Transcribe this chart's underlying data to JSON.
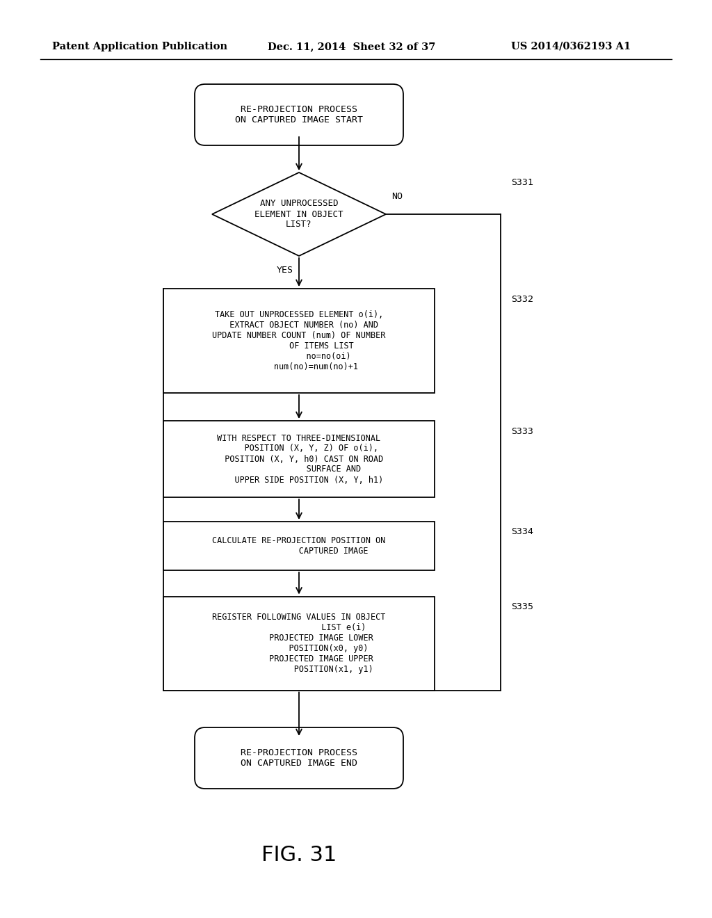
{
  "bg_color": "#ffffff",
  "header_left": "Patent Application Publication",
  "header_mid": "Dec. 11, 2014  Sheet 32 of 37",
  "header_right": "US 2014/0362193 A1",
  "figure_label": "FIG. 31",
  "start_text": "RE-PROJECTION PROCESS\nON CAPTURED IMAGE START",
  "s331_text": "ANY UNPROCESSED\nELEMENT IN OBJECT\nLIST?",
  "s332_text": "TAKE OUT UNPROCESSED ELEMENT o(i),\n  EXTRACT OBJECT NUMBER (no) AND\nUPDATE NUMBER COUNT (num) OF NUMBER\n         OF ITEMS LIST\n            no=no(oi)\n       num(no)=num(no)+1",
  "s333_text": "WITH RESPECT TO THREE-DIMENSIONAL\n     POSITION (X, Y, Z) OF o(i),\n  POSITION (X, Y, h0) CAST ON ROAD\n              SURFACE AND\n    UPPER SIDE POSITION (X, Y, h1)",
  "s334_text": "CALCULATE RE-PROJECTION POSITION ON\n              CAPTURED IMAGE",
  "s335_text": "REGISTER FOLLOWING VALUES IN OBJECT\n                  LIST e(i)\n         PROJECTED IMAGE LOWER\n            POSITION(x0, y0)\n         PROJECTED IMAGE UPPER\n              POSITION(x1, y1)",
  "end_text": "RE-PROJECTION PROCESS\nON CAPTURED IMAGE END"
}
